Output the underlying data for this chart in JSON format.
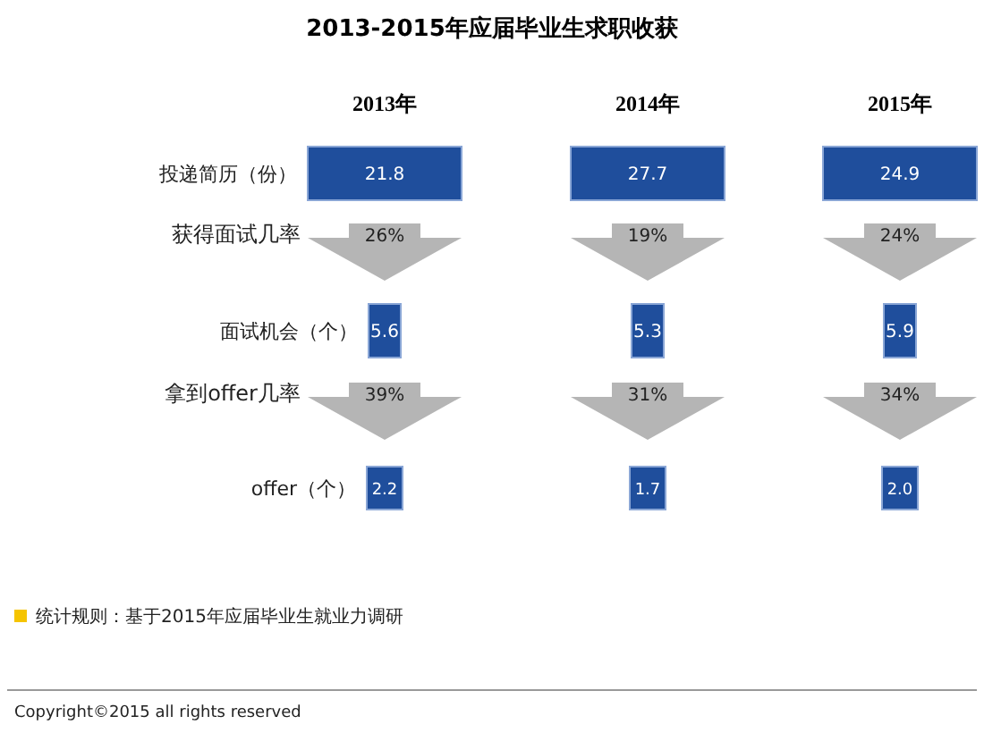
{
  "chart_data": {
    "type": "other",
    "title": "2013-2015年应届毕业生求职收获",
    "categories": [
      "2013年",
      "2014年",
      "2015年"
    ],
    "series": [
      {
        "name": "投递简历（份）",
        "color": "#1f4e9c",
        "values": [
          21.8,
          27.7,
          24.9
        ]
      },
      {
        "name": "获得面试几率",
        "color": "#b5b5b5",
        "values": [
          26,
          19,
          24
        ],
        "value_labels": [
          "26%",
          "19%",
          "24%"
        ]
      },
      {
        "name": "面试机会（个）",
        "color": "#1f4e9c",
        "values": [
          5.6,
          5.3,
          5.9
        ]
      },
      {
        "name": "拿到offer几率",
        "color": "#b5b5b5",
        "values": [
          39,
          31,
          34
        ],
        "value_labels": [
          "39%",
          "31%",
          "34%"
        ]
      },
      {
        "name": "offer（个）",
        "color": "#1f4e9c",
        "values": [
          2.2,
          1.7,
          2.0
        ],
        "value_labels": [
          "2.2",
          "1.7",
          "2.0"
        ]
      }
    ],
    "annotations": [
      "统计规则：基于2015年应届毕业生就业力调研",
      "Copyright©2015 all rights reserved"
    ],
    "data_labels": true
  }
}
